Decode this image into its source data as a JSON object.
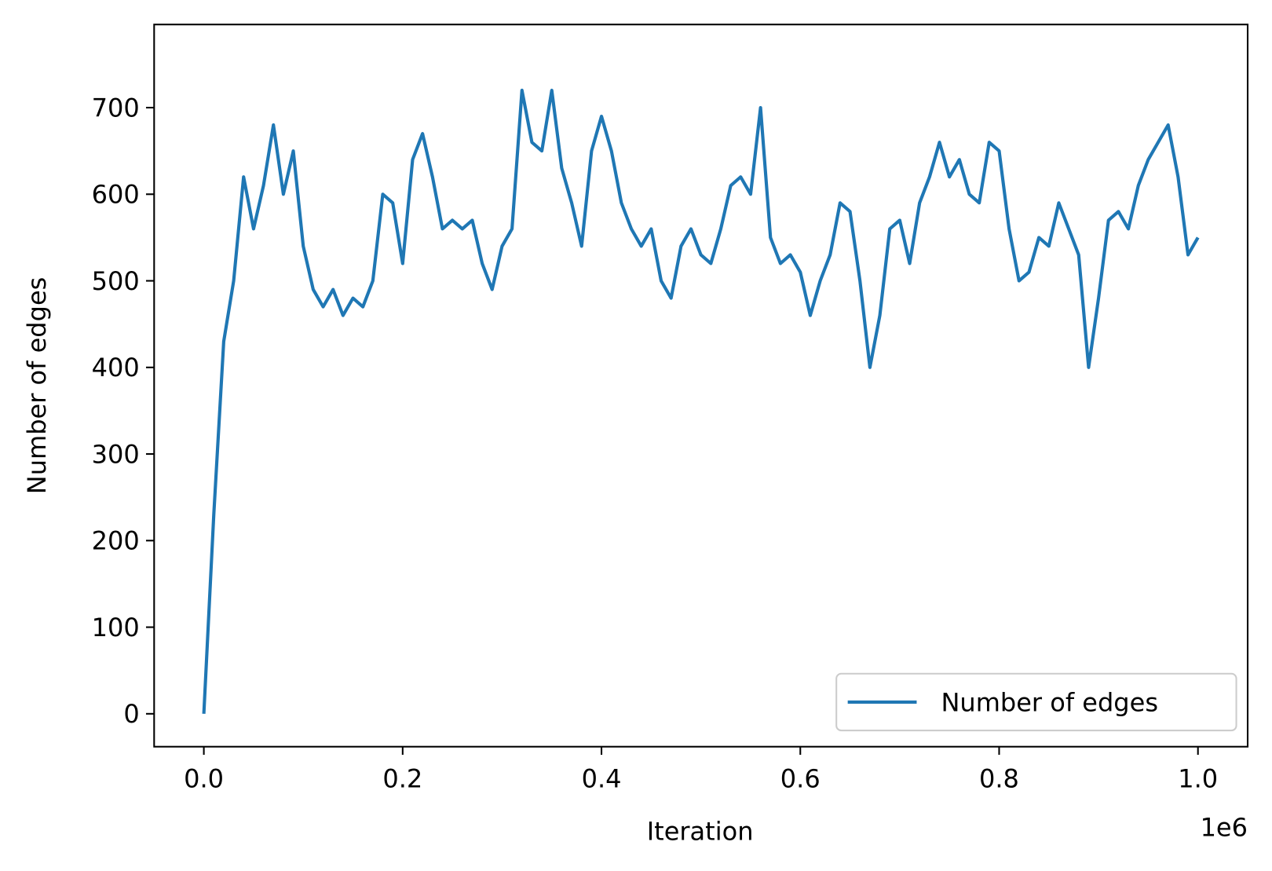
{
  "chart_data": {
    "type": "line",
    "xlabel": "Iteration",
    "ylabel": "Number of edges",
    "x_offset_label": "1e6",
    "x": [
      0,
      10000,
      20000,
      30000,
      40000,
      50000,
      60000,
      70000,
      80000,
      90000,
      100000,
      110000,
      120000,
      130000,
      140000,
      150000,
      160000,
      170000,
      180000,
      190000,
      200000,
      210000,
      220000,
      230000,
      240000,
      250000,
      260000,
      270000,
      280000,
      290000,
      300000,
      310000,
      320000,
      330000,
      340000,
      350000,
      360000,
      370000,
      380000,
      390000,
      400000,
      410000,
      420000,
      430000,
      440000,
      450000,
      460000,
      470000,
      480000,
      490000,
      500000,
      510000,
      520000,
      530000,
      540000,
      550000,
      560000,
      570000,
      580000,
      590000,
      600000,
      610000,
      620000,
      630000,
      640000,
      650000,
      660000,
      670000,
      680000,
      690000,
      700000,
      710000,
      720000,
      730000,
      740000,
      750000,
      760000,
      770000,
      780000,
      790000,
      800000,
      810000,
      820000,
      830000,
      840000,
      850000,
      860000,
      870000,
      880000,
      890000,
      900000,
      910000,
      920000,
      930000,
      940000,
      950000,
      960000,
      970000,
      980000,
      990000,
      1000000
    ],
    "series": [
      {
        "name": "Number of edges",
        "color": "#1f77b4",
        "values": [
          0,
          230,
          430,
          500,
          620,
          560,
          610,
          680,
          600,
          650,
          540,
          490,
          470,
          490,
          460,
          480,
          470,
          500,
          600,
          590,
          520,
          640,
          670,
          620,
          560,
          570,
          560,
          570,
          520,
          490,
          540,
          560,
          720,
          660,
          650,
          720,
          630,
          590,
          540,
          650,
          690,
          650,
          590,
          560,
          540,
          560,
          500,
          480,
          540,
          560,
          530,
          520,
          560,
          610,
          620,
          600,
          700,
          550,
          520,
          530,
          510,
          460,
          500,
          530,
          590,
          580,
          500,
          400,
          460,
          560,
          570,
          520,
          590,
          620,
          660,
          620,
          640,
          600,
          590,
          660,
          650,
          560,
          500,
          510,
          550,
          540,
          590,
          560,
          530,
          400,
          480,
          570,
          580,
          560,
          610,
          640,
          660,
          680,
          620,
          530,
          550
        ]
      }
    ],
    "xlim": [
      -50000,
      1050000
    ],
    "xticks": [
      {
        "value": 0,
        "label": "0.0"
      },
      {
        "value": 200000,
        "label": "0.2"
      },
      {
        "value": 400000,
        "label": "0.4"
      },
      {
        "value": 600000,
        "label": "0.6"
      },
      {
        "value": 800000,
        "label": "0.8"
      },
      {
        "value": 1000000,
        "label": "1.0"
      }
    ],
    "ylim": [
      -38,
      796
    ],
    "yticks": [
      0,
      100,
      200,
      300,
      400,
      500,
      600,
      700
    ],
    "legend": "lower right"
  }
}
